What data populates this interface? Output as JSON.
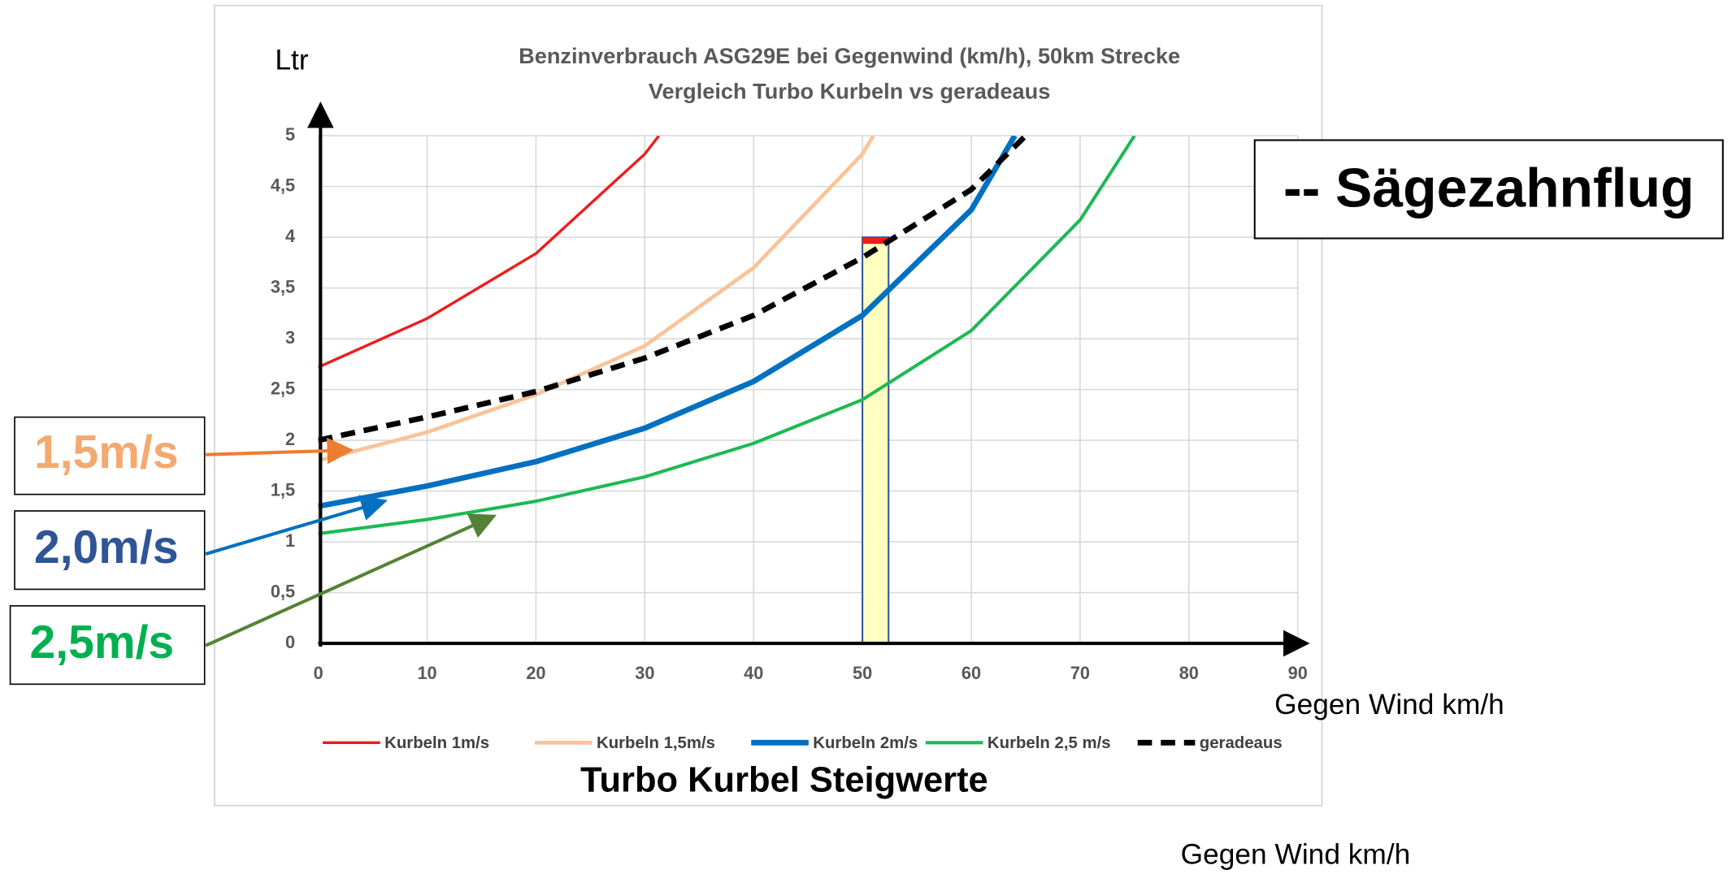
{
  "chart_data": {
    "type": "line",
    "title": "Benzinverbrauch ASG29E bei Gegenwind (km/h), 50km Strecke",
    "subtitle": "Vergleich Turbo Kurbeln vs geradeaus",
    "y_label": "Ltr",
    "x_label": "Gegen Wind km/h",
    "x_label_2": "Gegen Wind km/h",
    "legend_title": "Turbo Kurbel Steigwerte",
    "annotation": "-- Sägezahnflug",
    "callouts": [
      {
        "text": "1,5m/s",
        "color": "#f4a96f"
      },
      {
        "text": "2,0m/s",
        "color": "#2f5597"
      },
      {
        "text": "2,5m/s",
        "color": "#00b050"
      }
    ],
    "xlim": [
      0,
      90
    ],
    "xticks": [
      0,
      10,
      20,
      30,
      40,
      50,
      60,
      70,
      80,
      90
    ],
    "ylim": [
      0,
      5
    ],
    "yticks": [
      0,
      {
        "value": 0.5,
        "label": "0,5"
      },
      1,
      {
        "value": 1.5,
        "label": "1,5"
      },
      2,
      {
        "value": 2.5,
        "label": "2,5"
      },
      3,
      {
        "value": 3.5,
        "label": "3,5"
      },
      4,
      {
        "value": 4.5,
        "label": "4,5"
      },
      5
    ],
    "grid": true,
    "legend": "bottom",
    "highlight": {
      "x": [
        50,
        52.4
      ],
      "y": [
        0,
        4
      ],
      "color": "#ffffc0"
    },
    "series": [
      {
        "name": "Kurbeln 1m/s",
        "color": "#ee1c1c",
        "x": [
          0,
          10,
          20,
          30,
          31.3
        ],
        "values": [
          2.72,
          3.2,
          3.84,
          4.82,
          5
        ]
      },
      {
        "name": "Kurbeln 1,5m/s",
        "color": "#f8c49a",
        "x": [
          0,
          10,
          20,
          30,
          40,
          50,
          51
        ],
        "values": [
          1.8,
          2.08,
          2.45,
          2.93,
          3.7,
          4.82,
          5
        ]
      },
      {
        "name": "Kurbeln 2m/s",
        "color": "#0070c0",
        "x": [
          0,
          10,
          20,
          30,
          40,
          50,
          60,
          64
        ],
        "values": [
          1.35,
          1.55,
          1.79,
          2.12,
          2.58,
          3.23,
          4.27,
          5
        ]
      },
      {
        "name": "Kurbeln 2,5 m/s",
        "color": "#1db954",
        "x": [
          0,
          10,
          20,
          30,
          40,
          50,
          60,
          70,
          75
        ],
        "values": [
          1.08,
          1.22,
          1.4,
          1.64,
          1.97,
          2.4,
          3.08,
          4.17,
          5
        ]
      },
      {
        "name": "geradeaus",
        "color": "#000000",
        "dashed": true,
        "x": [
          0,
          10,
          20,
          30,
          40,
          50,
          60,
          65
        ],
        "values": [
          2.0,
          2.23,
          2.48,
          2.81,
          3.23,
          3.8,
          4.47,
          5
        ]
      }
    ]
  }
}
